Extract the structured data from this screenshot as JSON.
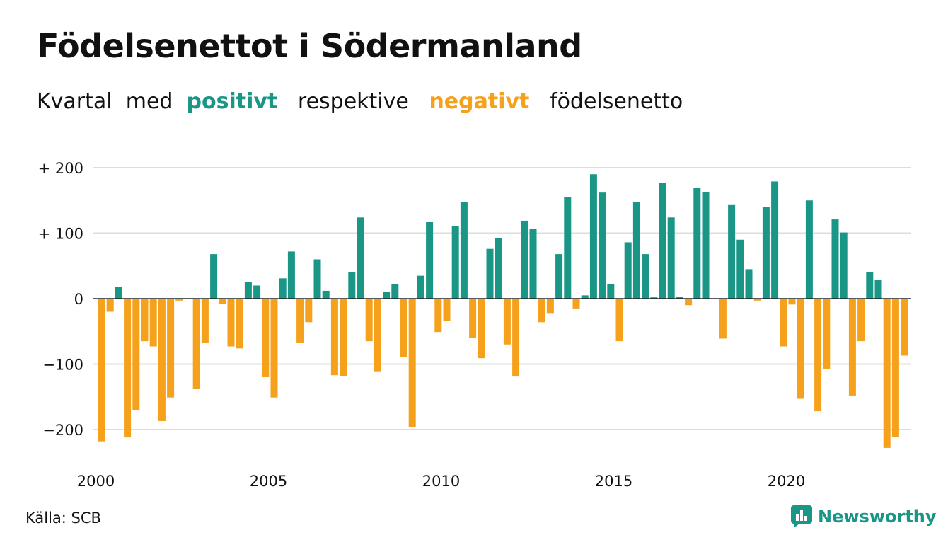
{
  "chart_data": {
    "type": "bar",
    "title": "Födelsenettot i Södermanland",
    "subtitle": {
      "w1": "Kvartal",
      "w2": "med",
      "positive": "positivt",
      "w3": "respektive",
      "negative": "negativt",
      "w4": "födelsenetto"
    },
    "xlabel": "",
    "ylabel": "",
    "ylim": [
      -250,
      200
    ],
    "y_ticks": [
      {
        "value": 200,
        "label": "+ 200"
      },
      {
        "value": 100,
        "label": "+ 100"
      },
      {
        "value": 0,
        "label": "0"
      },
      {
        "value": -100,
        "label": "−100"
      },
      {
        "value": -200,
        "label": "−200"
      }
    ],
    "x_ticks": [
      {
        "year": 2000,
        "label": "2000"
      },
      {
        "year": 2005,
        "label": "2005"
      },
      {
        "year": 2010,
        "label": "2010"
      },
      {
        "year": 2015,
        "label": "2015"
      },
      {
        "year": 2020,
        "label": "2020"
      }
    ],
    "grid": true,
    "start_year": 2000,
    "periods_per_year": 4,
    "values": [
      -218,
      -20,
      18,
      -212,
      -170,
      -65,
      -73,
      -187,
      -151,
      -3,
      0,
      -138,
      -67,
      68,
      -8,
      -73,
      -76,
      25,
      20,
      -120,
      -151,
      31,
      72,
      -67,
      -36,
      60,
      12,
      -117,
      -118,
      41,
      124,
      -65,
      -111,
      10,
      22,
      -89,
      -196,
      35,
      117,
      -51,
      -34,
      111,
      148,
      -60,
      -91,
      76,
      93,
      -70,
      -119,
      119,
      107,
      -36,
      -22,
      68,
      155,
      -15,
      5,
      190,
      162,
      22,
      -65,
      86,
      148,
      68,
      2,
      177,
      124,
      3,
      -10,
      169,
      163,
      0,
      -61,
      144,
      90,
      45,
      -3,
      140,
      179,
      -73,
      -9,
      -153,
      150,
      -172,
      -107,
      121,
      101,
      -148,
      -65,
      40,
      29,
      -228,
      -211,
      -87
    ],
    "colors": {
      "positive": "#1a9687",
      "negative": "#f5a11c",
      "grid": "#dddddd",
      "axis": "#222222"
    }
  },
  "footer": {
    "source": "Källa: SCB",
    "brand": "Newsworthy"
  },
  "icons": {
    "brand_logo": "newsworthy-logo-icon"
  }
}
